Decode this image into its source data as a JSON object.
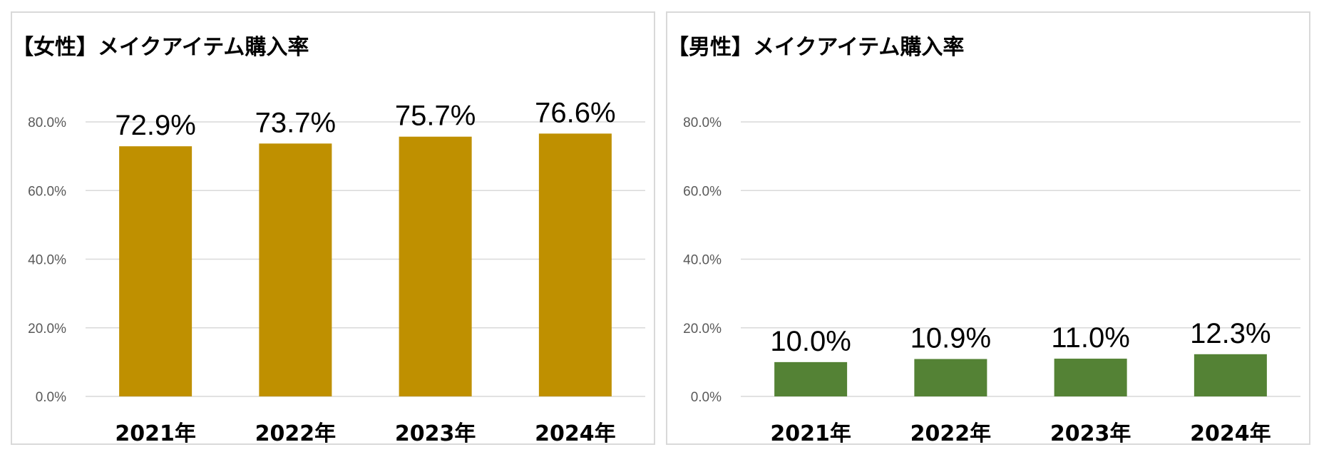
{
  "chart_data": [
    {
      "type": "bar",
      "title": "【女性】メイクアイテム購入率",
      "categories": [
        "2021年",
        "2022年",
        "2023年",
        "2024年"
      ],
      "values": [
        72.9,
        73.7,
        75.7,
        76.6
      ],
      "data_labels": [
        "72.9%",
        "73.7%",
        "75.7%",
        "76.6%"
      ],
      "ylim": [
        0,
        80
      ],
      "yticks": [
        "0.0%",
        "20.0%",
        "40.0%",
        "60.0%",
        "80.0%"
      ],
      "grid": true,
      "legend": "none",
      "color": "#bf9000"
    },
    {
      "type": "bar",
      "title": "【男性】メイクアイテム購入率",
      "categories": [
        "2021年",
        "2022年",
        "2023年",
        "2024年"
      ],
      "values": [
        10.0,
        10.9,
        11.0,
        12.3
      ],
      "data_labels": [
        "10.0%",
        "10.9%",
        "11.0%",
        "12.3%"
      ],
      "ylim": [
        0,
        80
      ],
      "yticks": [
        "0.0%",
        "20.0%",
        "40.0%",
        "60.0%",
        "80.0%"
      ],
      "grid": true,
      "legend": "none",
      "color": "#548235"
    }
  ]
}
